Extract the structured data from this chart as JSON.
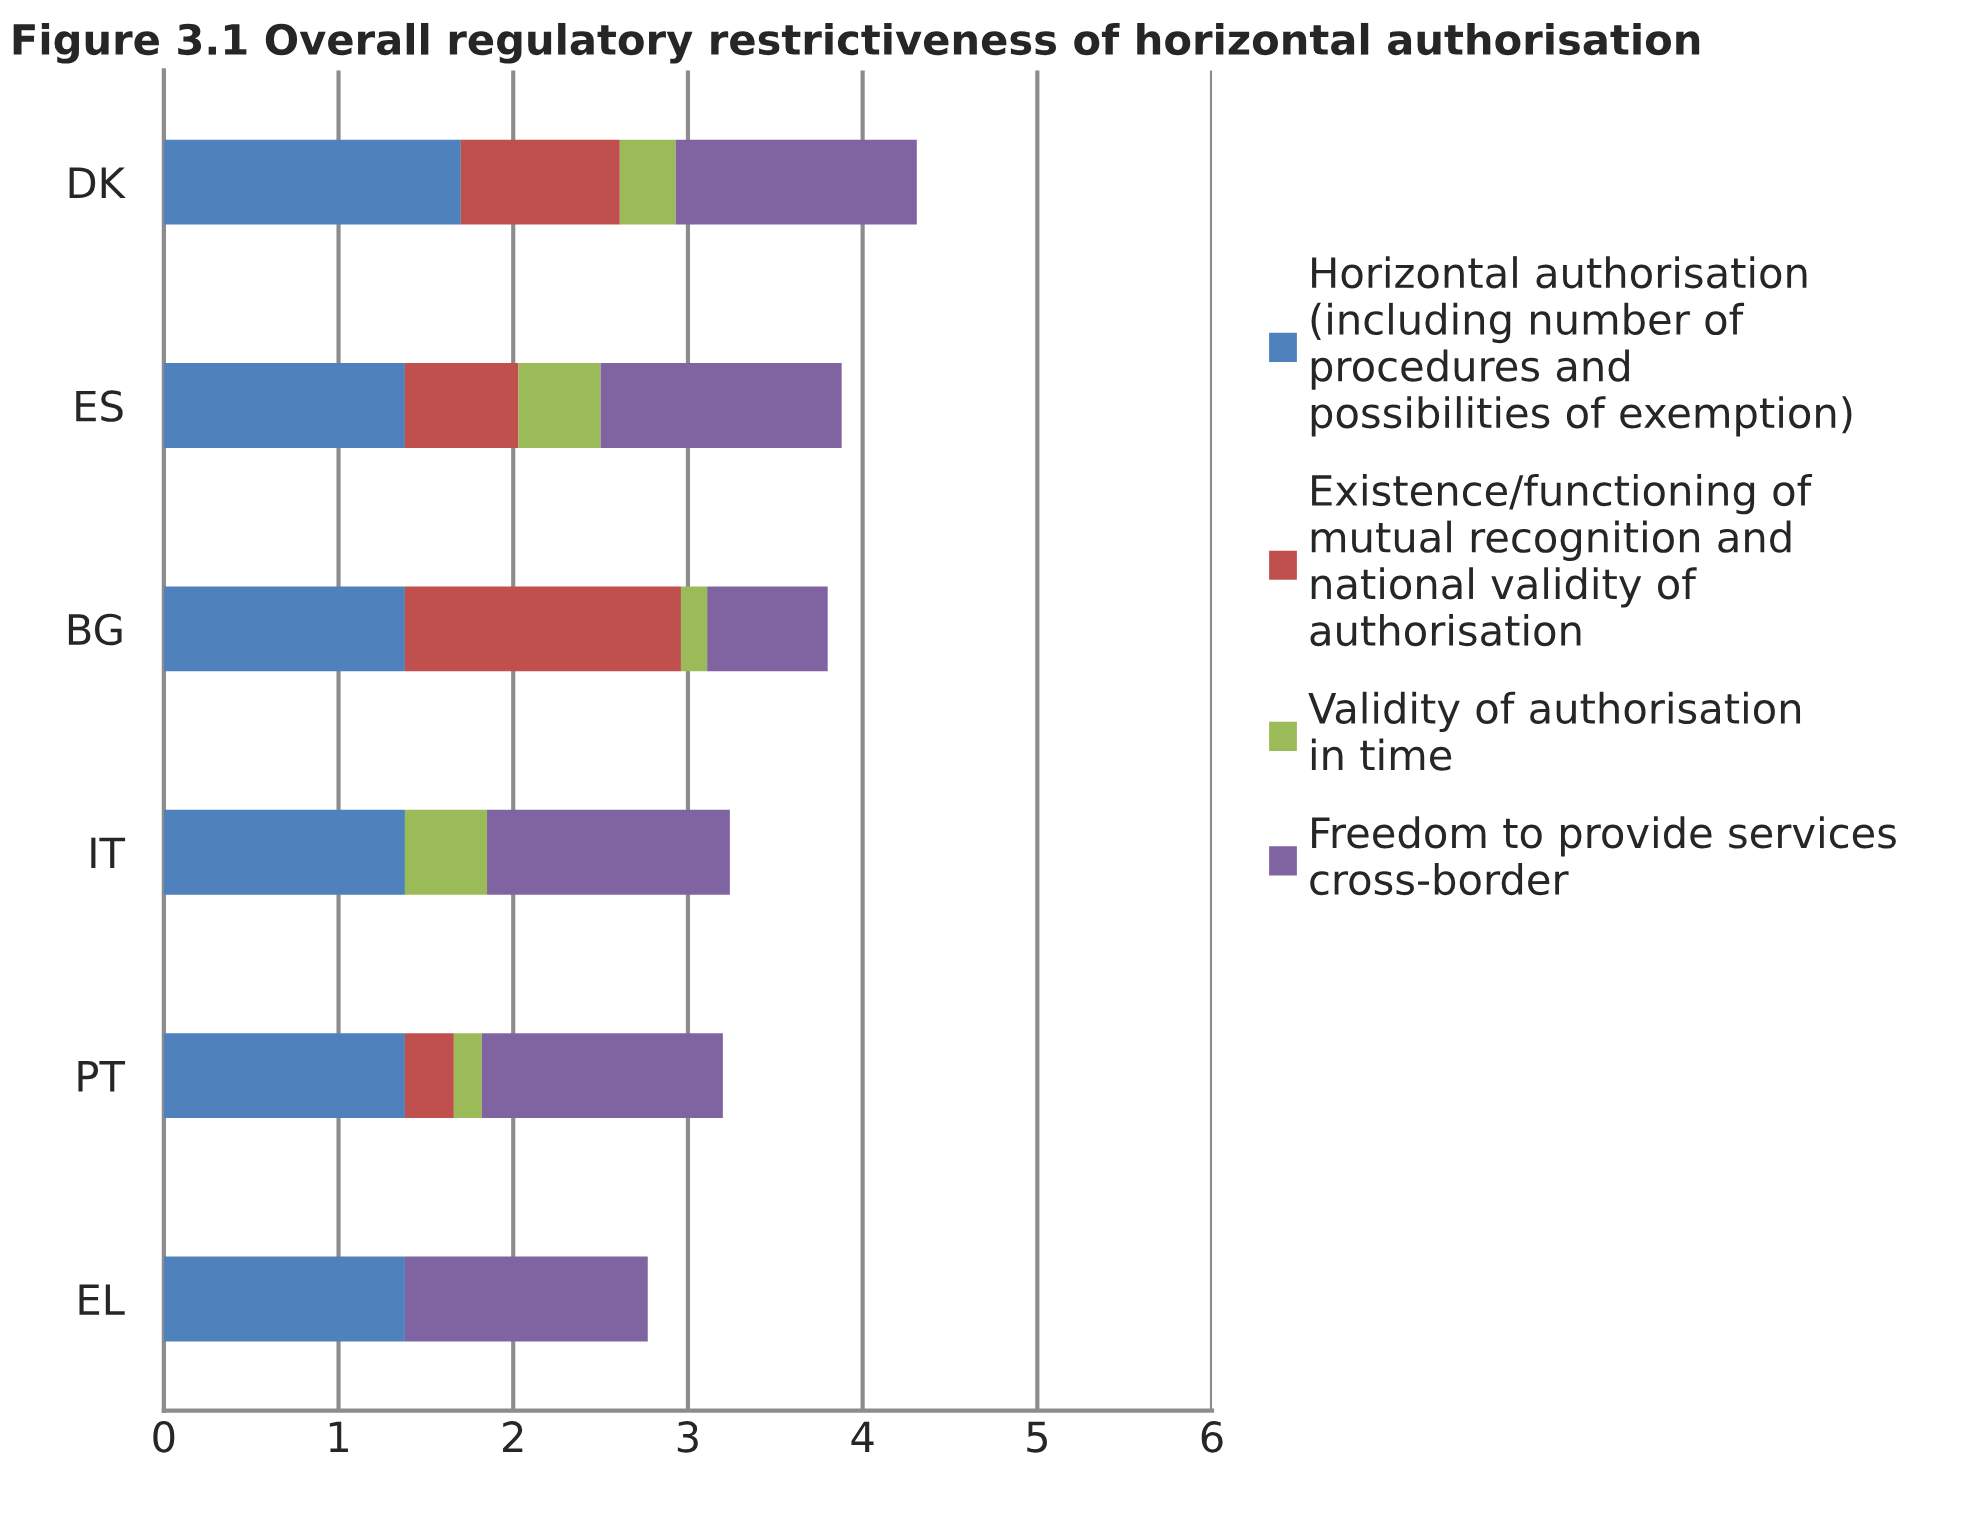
{
  "chart_data": {
    "type": "bar",
    "orientation": "horizontal",
    "stacked": true,
    "title": "Figure 3.1 Overall regulatory restrictiveness of horizontal authorisation",
    "categories": [
      "DK",
      "ES",
      "BG",
      "IT",
      "PT",
      "EL"
    ],
    "series": [
      {
        "name": "Horizontal authorisation (including number of procedures and possibilities of exemption)",
        "color": "#4f81bd",
        "values": [
          1.7,
          1.38,
          1.38,
          1.38,
          1.38,
          1.38
        ]
      },
      {
        "name": "Existence/functioning of mutual recognition and national validity of authorisation",
        "color": "#c0504d",
        "values": [
          0.91,
          0.65,
          1.58,
          0,
          0.28,
          0
        ]
      },
      {
        "name": "Validity of authorisation in time",
        "color": "#9bbb59",
        "values": [
          0.32,
          0.47,
          0.15,
          0.47,
          0.16,
          0
        ]
      },
      {
        "name": "Freedom to provide services cross-border",
        "color": "#8064a2",
        "values": [
          1.38,
          1.38,
          0.69,
          1.39,
          1.38,
          1.39
        ]
      }
    ],
    "xlim": [
      0,
      6
    ],
    "xticks": [
      0,
      1,
      2,
      3,
      4,
      5,
      6
    ],
    "grid": "x",
    "legend": "right"
  }
}
